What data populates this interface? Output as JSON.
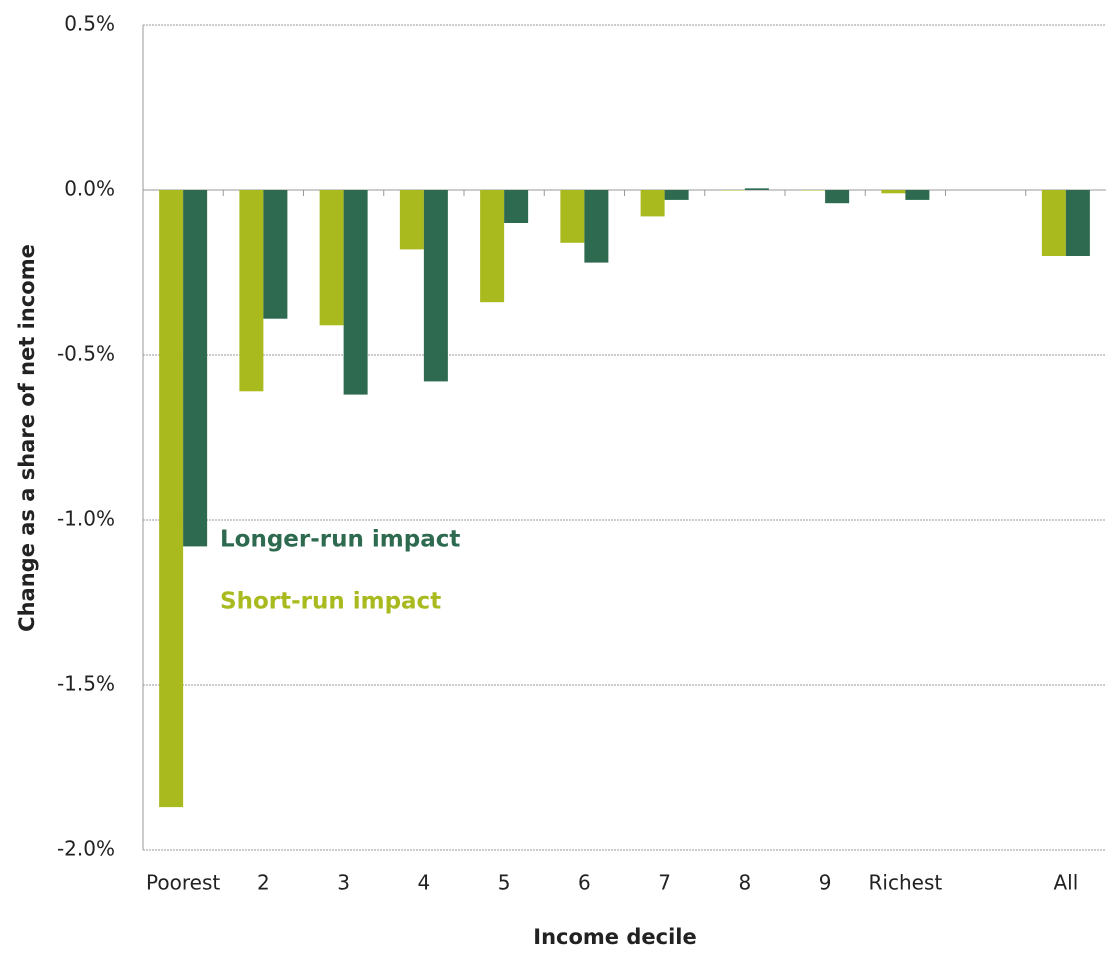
{
  "chart_data": {
    "type": "bar",
    "x_label": "Income decile",
    "y_label": "Change as a share of net income",
    "categories": [
      "Poorest",
      "2",
      "3",
      "4",
      "5",
      "6",
      "7",
      "8",
      "9",
      "Richest",
      null,
      "All"
    ],
    "series": [
      {
        "name": "Short-run impact",
        "color": "#a9ba1e",
        "values": [
          -1.87,
          -0.61,
          -0.41,
          -0.18,
          -0.34,
          -0.16,
          -0.08,
          0,
          0,
          -0.01,
          null,
          -0.2
        ]
      },
      {
        "name": "Longer-run impact",
        "color": "#2e6a4f",
        "values": [
          -1.08,
          -0.39,
          -0.62,
          -0.58,
          -0.1,
          -0.22,
          -0.03,
          0.005,
          -0.04,
          -0.03,
          null,
          -0.2
        ]
      }
    ],
    "ylim": [
      -2.0,
      0.5
    ],
    "yticks": [
      {
        "value": -2.0,
        "label": "-2.0%"
      },
      {
        "value": -1.5,
        "label": "-1.5%"
      },
      {
        "value": -1.0,
        "label": "-1.0%"
      },
      {
        "value": -0.5,
        "label": "-0.5%"
      },
      {
        "value": 0.0,
        "label": "0.0%"
      },
      {
        "value": 0.5,
        "label": "0.5%"
      }
    ],
    "grid": true
  }
}
